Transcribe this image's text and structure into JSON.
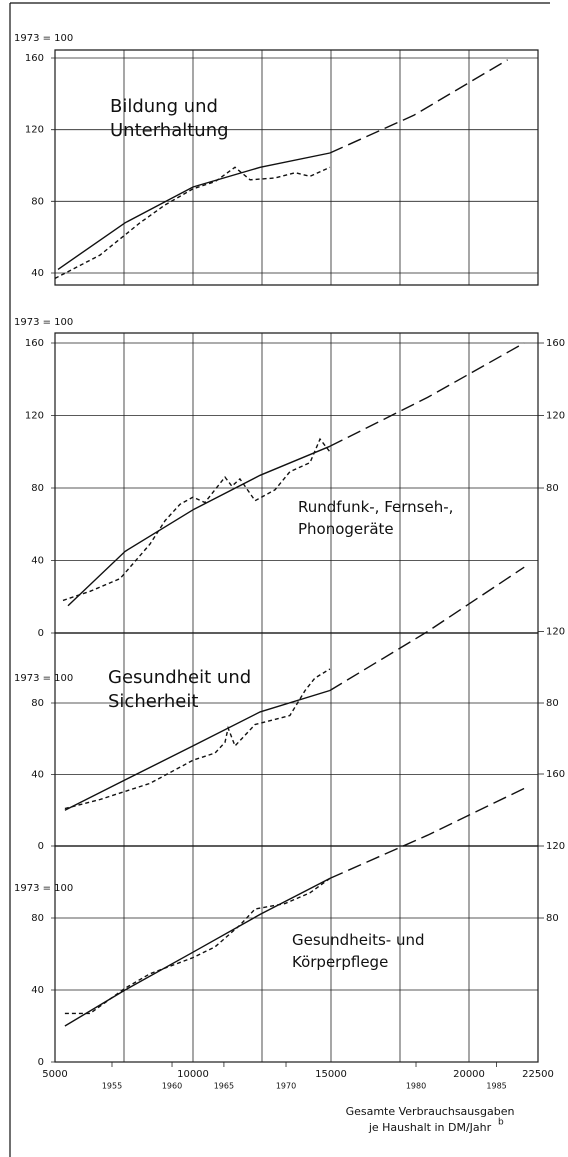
{
  "chart_data": [
    {
      "type": "line",
      "base_label": "1973 = 100",
      "title": [
        "Bildung und",
        "Unterhaltung"
      ],
      "ylim": [
        40,
        160
      ],
      "yticks": [
        40,
        80,
        120,
        160
      ],
      "series": [
        {
          "style": "solid",
          "color": "#111",
          "x": [
            5110,
            7540,
            10000,
            12430,
            14960
          ],
          "values": [
            42,
            68,
            88,
            99,
            107
          ]
        },
        {
          "style": "dashed",
          "color": "#111",
          "x": [
            5000,
            6630,
            8080,
            8990,
            10000,
            10800,
            11520,
            12070,
            12970,
            13700,
            14240,
            14960
          ],
          "values": [
            37,
            50,
            68,
            78,
            87,
            91,
            99,
            92,
            93,
            96,
            94,
            99
          ]
        },
        {
          "style": "projection",
          "color": "#111",
          "x": [
            14960,
            18000,
            21400
          ],
          "values": [
            107,
            128,
            159
          ]
        }
      ]
    },
    {
      "type": "line",
      "base_label": "1973 = 100",
      "title": [
        "Rundfunk-, Fernseh-,",
        "Phonogeräte"
      ],
      "ylim": [
        0,
        160
      ],
      "yticks": [
        0,
        40,
        80,
        120,
        160
      ],
      "y2ticks": [
        80,
        120,
        160
      ],
      "series": [
        {
          "style": "solid",
          "color": "#111",
          "x": [
            5470,
            7540,
            10000,
            12430,
            14960
          ],
          "values": [
            15,
            45,
            68,
            87,
            103
          ]
        },
        {
          "style": "dashed",
          "color": "#111",
          "x": [
            5290,
            6270,
            7360,
            8440,
            8990,
            9530,
            10000,
            10430,
            11160,
            11410,
            11700,
            12250,
            12970,
            13510,
            14240,
            14600,
            14960
          ],
          "values": [
            18,
            23,
            30,
            49,
            62,
            71,
            75,
            72,
            86,
            81,
            85,
            73,
            79,
            89,
            94,
            107,
            100
          ]
        },
        {
          "style": "projection",
          "color": "#111",
          "x": [
            14960,
            18500,
            22000
          ],
          "values": [
            103,
            130,
            160
          ]
        }
      ]
    },
    {
      "type": "line",
      "base_label": "1973 = 100",
      "title": [
        "Gesundheit und",
        "Sicherheit"
      ],
      "ylim": [
        0,
        80
      ],
      "yticks": [
        0,
        40,
        80
      ],
      "y2ticks": [
        80,
        120
      ],
      "series": [
        {
          "style": "solid",
          "color": "#111",
          "x": [
            5360,
            7540,
            10000,
            12430,
            14960
          ],
          "values": [
            20,
            37,
            56,
            75,
            87
          ]
        },
        {
          "style": "dashed",
          "color": "#111",
          "x": [
            5360,
            6630,
            8440,
            10000,
            10800,
            11160,
            11270,
            11520,
            12250,
            13510,
            14060,
            14420,
            14960
          ],
          "values": [
            21,
            26,
            35,
            48,
            52,
            58,
            66,
            56,
            68,
            73,
            87,
            94,
            99
          ]
        },
        {
          "style": "projection",
          "color": "#111",
          "x": [
            14960,
            18500,
            22000
          ],
          "values": [
            87,
            120,
            156
          ]
        }
      ]
    },
    {
      "type": "line",
      "base_label": "1973 = 100",
      "title": [
        "Gesundheits- und",
        "Körperpflege"
      ],
      "ylim": [
        0,
        80
      ],
      "yticks": [
        0,
        40,
        80
      ],
      "y2ticks": [
        80,
        120,
        160
      ],
      "series": [
        {
          "style": "solid",
          "color": "#111",
          "x": [
            5360,
            7540,
            10000,
            12430,
            14960
          ],
          "values": [
            20,
            40,
            61,
            82,
            102
          ]
        },
        {
          "style": "dashed",
          "color": "#111",
          "x": [
            5360,
            6270,
            7540,
            8440,
            10000,
            10800,
            11700,
            12250,
            13330,
            14240,
            14960
          ],
          "values": [
            27,
            27,
            41,
            49,
            58,
            64,
            76,
            85,
            88,
            94,
            102
          ]
        },
        {
          "style": "projection",
          "color": "#111",
          "x": [
            14960,
            18500,
            22000
          ],
          "values": [
            102,
            126,
            152
          ]
        }
      ],
      "xlim": [
        5000,
        22500
      ],
      "xticks": [
        5000,
        10000,
        15000,
        20000,
        22500
      ],
      "xminor": [
        7500,
        12500,
        17500
      ],
      "year_ticks": [
        {
          "value": 7065,
          "label": "1955"
        },
        {
          "value": 9240,
          "label": "1960"
        },
        {
          "value": 11120,
          "label": "1965"
        },
        {
          "value": 13370,
          "label": "1970"
        },
        {
          "value": 18080,
          "label": "1980"
        },
        {
          "value": 21000,
          "label": "1985"
        }
      ],
      "xlabel": [
        "Gesamte Verbrauchsausgaben",
        "je Haushalt in DM/Jahr"
      ],
      "xlabel_note": "b"
    }
  ]
}
